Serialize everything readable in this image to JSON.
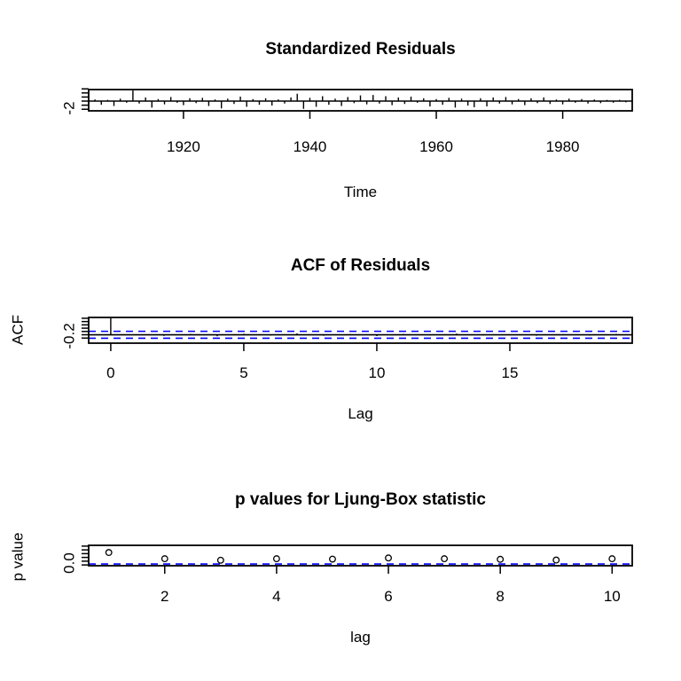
{
  "figure": {
    "background_color": "#ffffff",
    "foreground_color": "#000000",
    "accent_blue": "#0000ff"
  },
  "chart_data": [
    {
      "id": "standardized-residuals",
      "type": "bar",
      "title": "Standardized Residuals",
      "xlabel": "Time",
      "ylabel": "",
      "ytick_shown": "-2",
      "x": [
        1905,
        1906,
        1907,
        1908,
        1909,
        1910,
        1911,
        1912,
        1913,
        1914,
        1915,
        1916,
        1917,
        1918,
        1919,
        1920,
        1921,
        1922,
        1923,
        1924,
        1925,
        1926,
        1927,
        1928,
        1929,
        1930,
        1931,
        1932,
        1933,
        1934,
        1935,
        1936,
        1937,
        1938,
        1939,
        1940,
        1941,
        1942,
        1943,
        1944,
        1945,
        1946,
        1947,
        1948,
        1949,
        1950,
        1951,
        1952,
        1953,
        1954,
        1955,
        1956,
        1957,
        1958,
        1959,
        1960,
        1961,
        1962,
        1963,
        1964,
        1965,
        1966,
        1967,
        1968,
        1969,
        1970,
        1971,
        1972,
        1973,
        1974,
        1975,
        1976,
        1977,
        1978,
        1979,
        1980,
        1981,
        1982,
        1983,
        1984,
        1985,
        1986,
        1987,
        1988,
        1989,
        1990,
        1991
      ],
      "values": [
        -0.5,
        0.4,
        -0.9,
        0.3,
        -1.2,
        0.6,
        -0.4,
        2.6,
        -0.6,
        0.9,
        -1.6,
        0.5,
        -0.8,
        1.0,
        -0.4,
        -1.0,
        0.7,
        -0.5,
        0.8,
        -1.2,
        0.4,
        -1.8,
        0.6,
        -0.7,
        1.1,
        -1.4,
        0.5,
        -0.9,
        0.7,
        -1.1,
        0.4,
        -0.6,
        0.9,
        1.8,
        -1.9,
        0.8,
        -1.4,
        1.2,
        -0.9,
        0.6,
        -1.2,
        1.0,
        -0.5,
        1.4,
        -0.8,
        1.5,
        -0.6,
        1.2,
        -1.0,
        0.9,
        -0.7,
        1.1,
        -0.4,
        0.7,
        -1.3,
        0.5,
        -0.9,
        0.8,
        -1.6,
        0.6,
        -1.1,
        -1.5,
        0.7,
        -1.3,
        0.9,
        -0.6,
        1.0,
        -0.8,
        0.5,
        -1.0,
        0.7,
        -0.5,
        0.9,
        -0.7,
        0.4,
        -0.8,
        0.6,
        -0.4,
        0.5,
        -0.6,
        0.4,
        -0.5,
        0.3,
        -0.4,
        0.3,
        -0.3,
        0.2
      ],
      "xticks": [
        1920,
        1940,
        1960,
        1980
      ],
      "yticks": [
        -2,
        -1,
        0,
        1,
        2,
        3
      ],
      "xlim": [
        1905,
        1991
      ],
      "ylim": [
        -2.39,
        2.83
      ],
      "zero_line": true,
      "grid": false
    },
    {
      "id": "acf-of-residuals",
      "type": "bar",
      "title": "ACF of Residuals",
      "xlabel": "Lag",
      "ylabel": "ACF",
      "ytick_shown": "-0.2",
      "x": [
        0,
        1,
        2,
        3,
        4,
        5,
        6,
        7,
        8,
        9,
        10,
        11,
        12,
        13,
        14,
        15,
        16,
        17,
        18,
        19
      ],
      "values": [
        1.0,
        0.03,
        -0.07,
        0.05,
        -0.09,
        0.06,
        -0.05,
        0.08,
        -0.06,
        0.04,
        -0.08,
        0.05,
        -0.04,
        0.07,
        -0.05,
        0.03,
        -0.06,
        0.04,
        -0.05,
        0.05
      ],
      "confidence_bound": 0.21,
      "xticks": [
        0,
        5,
        10,
        15
      ],
      "yticks": [
        -0.2,
        0,
        0.2,
        0.4,
        0.6,
        0.8,
        1.0
      ],
      "xlim": [
        -0.83,
        19.6
      ],
      "ylim": [
        -0.51,
        1.05
      ],
      "zero_line": true,
      "grid": false
    },
    {
      "id": "ljung-box-p-values",
      "type": "scatter",
      "title": "p values for Ljung-Box statistic",
      "xlabel": "lag",
      "ylabel": "p value",
      "ytick_shown": "0.0",
      "x": [
        1,
        2,
        3,
        4,
        5,
        6,
        7,
        8,
        9,
        10
      ],
      "values": [
        0.66,
        0.33,
        0.25,
        0.33,
        0.31,
        0.37,
        0.33,
        0.3,
        0.26,
        0.33
      ],
      "significance_level": 0.05,
      "xticks": [
        2,
        4,
        6,
        8,
        10
      ],
      "yticks": [
        0,
        0.2,
        0.4,
        0.6,
        0.8,
        1.0
      ],
      "xlim": [
        0.64,
        10.36
      ],
      "ylim": [
        -0.042,
        1.042
      ],
      "zero_line": false,
      "grid": false
    }
  ]
}
